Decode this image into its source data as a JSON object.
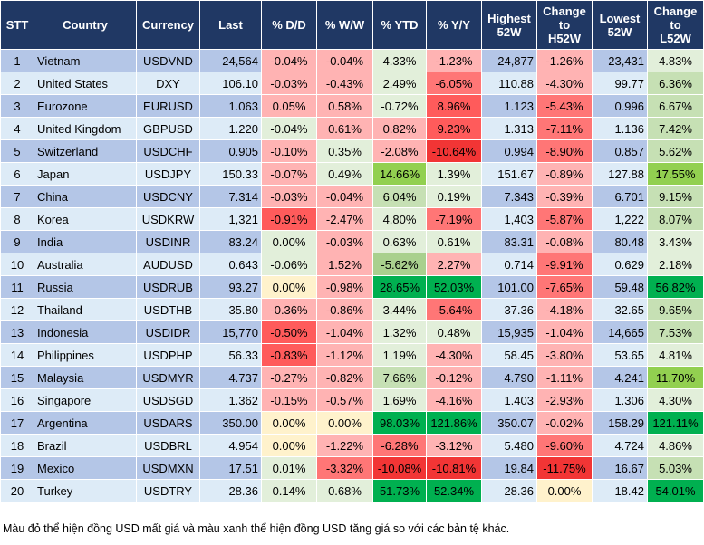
{
  "headers": [
    "STT",
    "Country",
    "Currency",
    "Last",
    "% D/D",
    "% W/W",
    "% YTD",
    "% Y/Y",
    "Highest 52W",
    "Change to H52W",
    "Lowest 52W",
    "Change to L52W"
  ],
  "color_legend": {
    "r1": "#ffb3b3",
    "r2": "#ff7676",
    "r3": "#ff5b5b",
    "r4": "#f23535",
    "g1": "#e2efda",
    "g2": "#c6e0b4",
    "g25": "#a9d08e",
    "g3": "#92d050",
    "G": "#00b050",
    "y": "#fff2cc",
    "header": "#203864",
    "row_odd": "#b4c6e7",
    "row_even": "#ddebf7"
  },
  "rows": [
    {
      "v": [
        "1",
        "Vietnam",
        "USDVND",
        "24,564",
        "-0.04%",
        "-0.04%",
        "4.33%",
        "-1.23%",
        "24,877",
        "-1.26%",
        "23,431",
        "4.83%"
      ],
      "colors": [
        "r1",
        "r1",
        "g1",
        "r1",
        "r1",
        "g1"
      ]
    },
    {
      "v": [
        "2",
        "United States",
        "DXY",
        "106.10",
        "-0.03%",
        "-0.43%",
        "2.49%",
        "-6.05%",
        "110.88",
        "-4.30%",
        "99.77",
        "6.36%"
      ],
      "colors": [
        "r1",
        "r1",
        "g1",
        "r2",
        "r1",
        "g2"
      ]
    },
    {
      "v": [
        "3",
        "Eurozone",
        "EURUSD",
        "1.063",
        "0.05%",
        "0.58%",
        "-0.72%",
        "8.96%",
        "1.123",
        "-5.43%",
        "0.996",
        "6.67%"
      ],
      "colors": [
        "r1",
        "r1",
        "g1",
        "r3",
        "r2",
        "g2"
      ]
    },
    {
      "v": [
        "4",
        "United Kingdom",
        "GBPUSD",
        "1.220",
        "-0.04%",
        "0.61%",
        "0.82%",
        "9.23%",
        "1.313",
        "-7.11%",
        "1.136",
        "7.42%"
      ],
      "colors": [
        "g1",
        "r1",
        "r1",
        "r3",
        "r2",
        "g2"
      ]
    },
    {
      "v": [
        "5",
        "Switzerland",
        "USDCHF",
        "0.905",
        "-0.10%",
        "0.35%",
        "-2.08%",
        "-10.64%",
        "0.994",
        "-8.90%",
        "0.857",
        "5.62%"
      ],
      "colors": [
        "r1",
        "g1",
        "r1",
        "r4",
        "r2",
        "g2"
      ]
    },
    {
      "v": [
        "6",
        "Japan",
        "USDJPY",
        "150.33",
        "-0.07%",
        "0.49%",
        "14.66%",
        "1.39%",
        "151.67",
        "-0.89%",
        "127.88",
        "17.55%"
      ],
      "colors": [
        "r1",
        "g1",
        "g3",
        "g1",
        "r1",
        "g3"
      ]
    },
    {
      "v": [
        "7",
        "China",
        "USDCNY",
        "7.314",
        "-0.03%",
        "-0.04%",
        "6.04%",
        "0.19%",
        "7.343",
        "-0.39%",
        "6.701",
        "9.15%"
      ],
      "colors": [
        "r1",
        "r1",
        "g2",
        "g1",
        "r1",
        "g2"
      ]
    },
    {
      "v": [
        "8",
        "Korea",
        "USDKRW",
        "1,321",
        "-0.91%",
        "-2.47%",
        "4.80%",
        "-7.19%",
        "1,403",
        "-5.87%",
        "1,222",
        "8.07%"
      ],
      "colors": [
        "r3",
        "r1",
        "g1",
        "r2",
        "r2",
        "g2"
      ]
    },
    {
      "v": [
        "9",
        "India",
        "USDINR",
        "83.24",
        "0.00%",
        "-0.03%",
        "0.63%",
        "0.61%",
        "83.31",
        "-0.08%",
        "80.48",
        "3.43%"
      ],
      "colors": [
        "g1",
        "r1",
        "g1",
        "g1",
        "r1",
        "g1"
      ]
    },
    {
      "v": [
        "10",
        "Australia",
        "AUDUSD",
        "0.643",
        "-0.06%",
        "1.52%",
        "-5.62%",
        "2.27%",
        "0.714",
        "-9.91%",
        "0.629",
        "2.18%"
      ],
      "colors": [
        "g1",
        "r1",
        "g25",
        "r1",
        "r2",
        "g1"
      ]
    },
    {
      "v": [
        "11",
        "Russia",
        "USDRUB",
        "93.27",
        "0.00%",
        "-0.98%",
        "28.65%",
        "52.03%",
        "101.00",
        "-7.65%",
        "59.48",
        "56.82%"
      ],
      "colors": [
        "y",
        "r1",
        "G",
        "G",
        "r2",
        "G"
      ]
    },
    {
      "v": [
        "12",
        "Thailand",
        "USDTHB",
        "35.80",
        "-0.36%",
        "-0.86%",
        "3.44%",
        "-5.64%",
        "37.36",
        "-4.18%",
        "32.65",
        "9.65%"
      ],
      "colors": [
        "r1",
        "r1",
        "g1",
        "r2",
        "r1",
        "g2"
      ]
    },
    {
      "v": [
        "13",
        "Indonesia",
        "USDIDR",
        "15,770",
        "-0.50%",
        "-1.04%",
        "1.32%",
        "0.48%",
        "15,935",
        "-1.04%",
        "14,665",
        "7.53%"
      ],
      "colors": [
        "r3",
        "r1",
        "g1",
        "g1",
        "r1",
        "g2"
      ]
    },
    {
      "v": [
        "14",
        "Philippines",
        "USDPHP",
        "56.33",
        "-0.83%",
        "-1.12%",
        "1.19%",
        "-4.30%",
        "58.45",
        "-3.80%",
        "53.65",
        "4.81%"
      ],
      "colors": [
        "r3",
        "r1",
        "g1",
        "r1",
        "r1",
        "g1"
      ]
    },
    {
      "v": [
        "15",
        "Malaysia",
        "USDMYR",
        "4.737",
        "-0.27%",
        "-0.82%",
        "7.66%",
        "-0.12%",
        "4.790",
        "-1.11%",
        "4.241",
        "11.70%"
      ],
      "colors": [
        "r1",
        "r1",
        "g2",
        "r1",
        "r1",
        "g3"
      ]
    },
    {
      "v": [
        "16",
        "Singapore",
        "USDSGD",
        "1.362",
        "-0.15%",
        "-0.57%",
        "1.69%",
        "-4.16%",
        "1.403",
        "-2.93%",
        "1.306",
        "4.30%"
      ],
      "colors": [
        "r1",
        "r1",
        "g1",
        "r1",
        "r1",
        "g1"
      ]
    },
    {
      "v": [
        "17",
        "Argentina",
        "USDARS",
        "350.00",
        "0.00%",
        "0.00%",
        "98.03%",
        "121.86%",
        "350.07",
        "-0.02%",
        "158.29",
        "121.11%"
      ],
      "colors": [
        "y",
        "y",
        "G",
        "G",
        "r1",
        "G"
      ]
    },
    {
      "v": [
        "18",
        "Brazil",
        "USDBRL",
        "4.954",
        "0.00%",
        "-1.22%",
        "-6.28%",
        "-3.12%",
        "5.480",
        "-9.60%",
        "4.724",
        "4.86%"
      ],
      "colors": [
        "y",
        "r1",
        "r2",
        "r1",
        "r2",
        "g1"
      ]
    },
    {
      "v": [
        "19",
        "Mexico",
        "USDMXN",
        "17.51",
        "0.01%",
        "-3.32%",
        "-10.08%",
        "-10.81%",
        "19.84",
        "-11.75%",
        "16.67",
        "5.03%"
      ],
      "colors": [
        "g1",
        "r2",
        "r4",
        "r4",
        "r4",
        "g2"
      ]
    },
    {
      "v": [
        "20",
        "Turkey",
        "USDTRY",
        "28.36",
        "0.14%",
        "0.68%",
        "51.73%",
        "52.34%",
        "28.36",
        "0.00%",
        "18.42",
        "54.01%"
      ],
      "colors": [
        "g1",
        "g1",
        "G",
        "G",
        "y",
        "G"
      ]
    }
  ],
  "footnote": "Màu đỏ thể hiện đồng USD mất giá và màu xanh thể hiện đồng USD tăng giá so với các bản tệ khác."
}
